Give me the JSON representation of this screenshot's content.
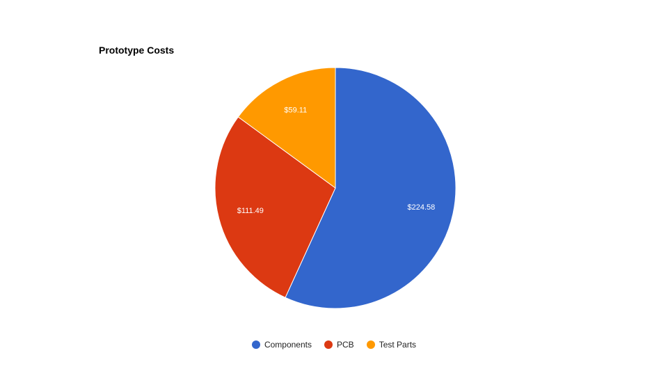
{
  "chart_data": {
    "type": "pie",
    "title": "Prototype Costs",
    "slices": [
      {
        "label": "Components",
        "value": 224.58,
        "display": "$224.58",
        "color": "#3366cc"
      },
      {
        "label": "PCB",
        "value": 111.49,
        "display": "$111.49",
        "color": "#dc3912"
      },
      {
        "label": "Test Parts",
        "value": 59.11,
        "display": "$59.11",
        "color": "#ff9900"
      }
    ],
    "legend_position": "bottom"
  }
}
